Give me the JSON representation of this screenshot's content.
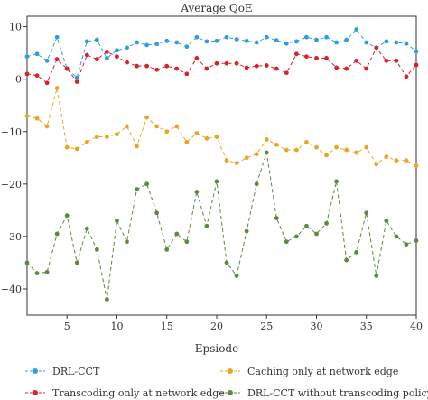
{
  "chart_data": {
    "type": "line",
    "title": "Average QoE",
    "xlabel": "Epsiode",
    "ylabel": "",
    "xlim": [
      1,
      40
    ],
    "ylim": [
      -45,
      12
    ],
    "xticks": [
      5,
      10,
      15,
      20,
      25,
      30,
      35,
      40
    ],
    "yticks": [
      10,
      0,
      -10,
      -20,
      -30,
      -40
    ],
    "grid": false,
    "legend_position": "bottom",
    "series": [
      {
        "name": "DRL-CCT",
        "color": "#2e9fd8",
        "x": [
          1,
          2,
          3,
          4,
          5,
          6,
          7,
          8,
          9,
          10,
          11,
          12,
          13,
          14,
          15,
          16,
          17,
          18,
          19,
          20,
          21,
          22,
          23,
          24,
          25,
          26,
          27,
          28,
          29,
          30,
          31,
          32,
          33,
          34,
          35,
          36,
          37,
          38,
          39,
          40
        ],
        "values": [
          4.3,
          4.8,
          3.5,
          8.0,
          2.0,
          0.3,
          7.2,
          7.5,
          4.0,
          5.5,
          6.0,
          7.0,
          6.5,
          6.7,
          7.3,
          7.0,
          6.2,
          8.0,
          7.2,
          7.3,
          8.0,
          7.6,
          7.3,
          7.0,
          8.0,
          7.4,
          6.8,
          7.2,
          8.0,
          7.5,
          8.0,
          7.0,
          7.5,
          9.5,
          7.0,
          6.0,
          7.2,
          7.0,
          6.8,
          5.3
        ]
      },
      {
        "name": "Transcoding only at network edge",
        "color": "#d9232a",
        "x": [
          1,
          2,
          3,
          4,
          5,
          6,
          7,
          8,
          9,
          10,
          11,
          12,
          13,
          14,
          15,
          16,
          17,
          18,
          19,
          20,
          21,
          22,
          23,
          24,
          25,
          26,
          27,
          28,
          29,
          30,
          31,
          32,
          33,
          34,
          35,
          36,
          37,
          38,
          39,
          40
        ],
        "values": [
          1.0,
          0.7,
          -0.7,
          3.8,
          2.0,
          -0.5,
          4.6,
          3.8,
          5.2,
          4.3,
          3.2,
          2.5,
          2.5,
          1.8,
          2.5,
          2.0,
          1.0,
          4.0,
          2.0,
          3.0,
          3.0,
          3.0,
          2.2,
          2.5,
          2.6,
          2.0,
          1.2,
          4.8,
          4.3,
          4.0,
          4.0,
          2.2,
          2.0,
          3.5,
          2.0,
          6.0,
          3.5,
          3.5,
          0.5,
          2.7
        ]
      },
      {
        "name": "Caching only at network edge",
        "color": "#e8a626",
        "x": [
          1,
          2,
          3,
          4,
          5,
          6,
          7,
          8,
          9,
          10,
          11,
          12,
          13,
          14,
          15,
          16,
          17,
          18,
          19,
          20,
          21,
          22,
          23,
          24,
          25,
          26,
          27,
          28,
          29,
          30,
          31,
          32,
          33,
          34,
          35,
          36,
          37,
          38,
          39,
          40
        ],
        "values": [
          -7.0,
          -7.5,
          -9.0,
          -1.7,
          -13.0,
          -13.3,
          -12.0,
          -11.0,
          -11.0,
          -10.5,
          -9.0,
          -12.8,
          -7.3,
          -9.0,
          -10.0,
          -9.0,
          -12.0,
          -10.3,
          -11.3,
          -11.0,
          -15.5,
          -16.0,
          -15.0,
          -14.3,
          -11.5,
          -12.5,
          -13.5,
          -13.5,
          -12.0,
          -13.0,
          -14.5,
          -13.0,
          -13.5,
          -14.0,
          -13.0,
          -16.2,
          -14.8,
          -15.5,
          -15.5,
          -16.5
        ]
      },
      {
        "name": "DRL-CCT without transcoding policy",
        "color": "#5b8a3c",
        "x": [
          1,
          2,
          3,
          4,
          5,
          6,
          7,
          8,
          9,
          10,
          11,
          12,
          13,
          14,
          15,
          16,
          17,
          18,
          19,
          20,
          21,
          22,
          23,
          24,
          25,
          26,
          27,
          28,
          29,
          30,
          31,
          32,
          33,
          34,
          35,
          36,
          37,
          38,
          39,
          40
        ],
        "values": [
          -35.0,
          -37.0,
          -36.8,
          -29.5,
          -26.0,
          -35.0,
          -28.5,
          -32.5,
          -42.0,
          -27.0,
          -31.0,
          -21.0,
          -20.0,
          -25.5,
          -32.5,
          -29.5,
          -31.0,
          -21.5,
          -28.0,
          -19.5,
          -35.0,
          -37.5,
          -29.0,
          -20.0,
          -14.0,
          -26.5,
          -31.0,
          -30.0,
          -28.0,
          -29.5,
          -27.5,
          -19.5,
          -34.5,
          -33.0,
          -25.5,
          -37.5,
          -27.0,
          -30.0,
          -31.5,
          -30.8
        ]
      }
    ]
  }
}
